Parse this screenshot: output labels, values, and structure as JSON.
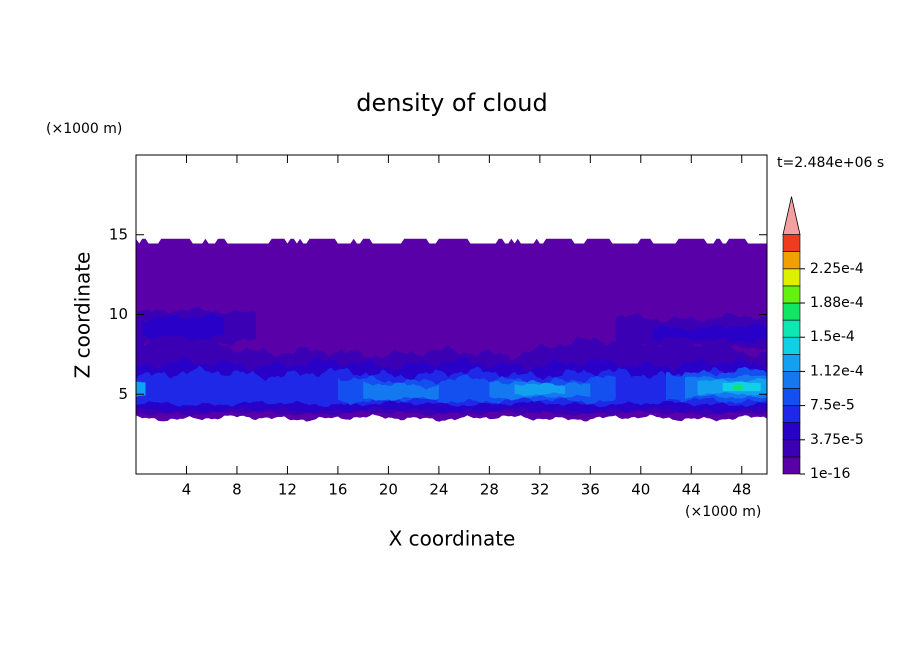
{
  "chart_data": {
    "type": "contour",
    "title": "density of cloud",
    "xlabel": "X coordinate",
    "ylabel": "Z coordinate",
    "xunit": "(×1000 m)",
    "yunit": "(×1000 m)",
    "annotation": "t=2.484e+06 s",
    "xlim": [
      0,
      50
    ],
    "ylim": [
      0,
      20
    ],
    "xticks": [
      4,
      8,
      12,
      16,
      20,
      24,
      28,
      32,
      36,
      40,
      44,
      48
    ],
    "yticks": [
      5,
      10,
      15
    ],
    "colorbar": {
      "levels": [
        1e-16,
        1.875e-05,
        3.75e-05,
        5.625e-05,
        7.5e-05,
        9.375e-05,
        0.0001125,
        0.00013125,
        0.00015,
        0.00016875,
        0.0001875,
        0.00020625,
        0.000225,
        0.00024375
      ],
      "colors": [
        "#5a00a8",
        "#3c00b4",
        "#2800c8",
        "#1e28e6",
        "#1450f0",
        "#1478f0",
        "#14a0f0",
        "#10d0e6",
        "#10e6b4",
        "#10e664",
        "#64f010",
        "#dcf000",
        "#f0a000",
        "#f03c1e"
      ],
      "extend_color": "#f4a0a0",
      "ticks": [
        1e-16,
        {
          "value": 3.75e-05,
          "label": "3.75e-5"
        },
        {
          "value": 7.5e-05,
          "label": "7.5e-5"
        },
        {
          "value": 0.0001125,
          "label": "1.12e-4"
        },
        {
          "value": 0.00015,
          "label": "1.5e-4"
        },
        {
          "value": 0.0001875,
          "label": "1.88e-4"
        },
        {
          "value": 0.000225,
          "label": "2.25e-4"
        }
      ]
    }
  }
}
